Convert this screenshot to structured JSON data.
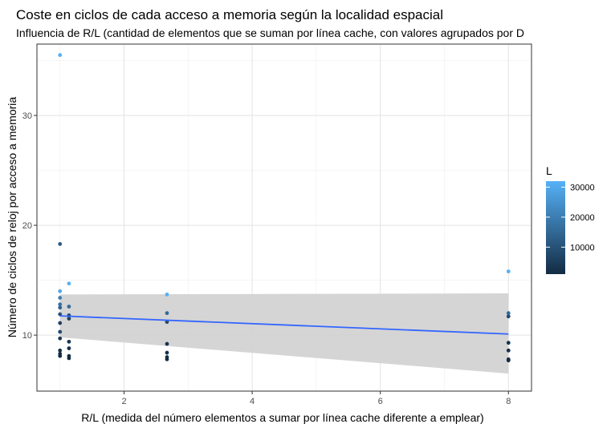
{
  "chart_data": {
    "type": "scatter",
    "title": "Coste en ciclos de cada acceso a memoria según la localidad espacial",
    "subtitle": "Influencia de R/L (cantidad de elementos que se suman por línea cache, con valores agrupados por D",
    "xlabel": "R/L (medida del número elementos a sumar por línea cache diferente a emplear)",
    "ylabel": "Número de ciclos de reloj por acceso a memoria",
    "xlim": [
      0.64,
      8.36
    ],
    "ylim": [
      4.9,
      36.5
    ],
    "xticks": [
      2,
      4,
      6,
      8
    ],
    "yticks": [
      10,
      20,
      30
    ],
    "xtick_labels": [
      "2",
      "4",
      "6",
      "8"
    ],
    "ytick_labels": [
      "10",
      "20",
      "30"
    ],
    "grid": true,
    "legend": {
      "title": "L",
      "position": "right",
      "color_min": "#132b43",
      "color_max": "#56b1f7",
      "range": [
        1000,
        32000
      ],
      "ticks": [
        10000,
        20000,
        30000
      ],
      "tick_labels": [
        "10000",
        "20000",
        "30000"
      ]
    },
    "points": [
      {
        "x": 1.0,
        "y": 35.5,
        "l": 32000
      },
      {
        "x": 1.0,
        "y": 18.3,
        "l": 12000
      },
      {
        "x": 1.0,
        "y": 14.0,
        "l": 30000
      },
      {
        "x": 1.0,
        "y": 13.4,
        "l": 20000
      },
      {
        "x": 1.0,
        "y": 12.8,
        "l": 17000
      },
      {
        "x": 1.0,
        "y": 12.5,
        "l": 14000
      },
      {
        "x": 1.0,
        "y": 11.9,
        "l": 10000
      },
      {
        "x": 1.0,
        "y": 11.1,
        "l": 6000
      },
      {
        "x": 1.0,
        "y": 10.3,
        "l": 8000
      },
      {
        "x": 1.0,
        "y": 9.7,
        "l": 4000
      },
      {
        "x": 1.0,
        "y": 8.6,
        "l": 2000
      },
      {
        "x": 1.0,
        "y": 8.3,
        "l": 1500
      },
      {
        "x": 1.0,
        "y": 8.1,
        "l": 1000
      },
      {
        "x": 1.14,
        "y": 14.7,
        "l": 32000
      },
      {
        "x": 1.14,
        "y": 12.6,
        "l": 16000
      },
      {
        "x": 1.14,
        "y": 11.8,
        "l": 8000
      },
      {
        "x": 1.14,
        "y": 11.5,
        "l": 6000
      },
      {
        "x": 1.14,
        "y": 9.4,
        "l": 3000
      },
      {
        "x": 1.14,
        "y": 8.8,
        "l": 2000
      },
      {
        "x": 1.14,
        "y": 8.1,
        "l": 1500
      },
      {
        "x": 1.14,
        "y": 7.9,
        "l": 1000
      },
      {
        "x": 2.67,
        "y": 13.7,
        "l": 32000
      },
      {
        "x": 2.67,
        "y": 12.0,
        "l": 16000
      },
      {
        "x": 2.67,
        "y": 11.2,
        "l": 8000
      },
      {
        "x": 2.67,
        "y": 9.2,
        "l": 3000
      },
      {
        "x": 2.67,
        "y": 8.4,
        "l": 2000
      },
      {
        "x": 2.67,
        "y": 8.0,
        "l": 1500
      },
      {
        "x": 2.67,
        "y": 7.8,
        "l": 1000
      },
      {
        "x": 8.0,
        "y": 15.8,
        "l": 32000
      },
      {
        "x": 8.0,
        "y": 12.0,
        "l": 16000
      },
      {
        "x": 8.0,
        "y": 11.7,
        "l": 8000
      },
      {
        "x": 8.0,
        "y": 9.3,
        "l": 3000
      },
      {
        "x": 8.0,
        "y": 8.6,
        "l": 2000
      },
      {
        "x": 8.0,
        "y": 7.8,
        "l": 1500
      },
      {
        "x": 8.0,
        "y": 7.7,
        "l": 1000
      }
    ],
    "trend": {
      "method": "linear",
      "color": "#3366ff",
      "band_color": "#d3d3d3",
      "x": [
        1.0,
        8.0
      ],
      "y": [
        11.75,
        10.1
      ],
      "lower": [
        9.8,
        6.5
      ],
      "upper": [
        13.7,
        13.8
      ]
    }
  }
}
